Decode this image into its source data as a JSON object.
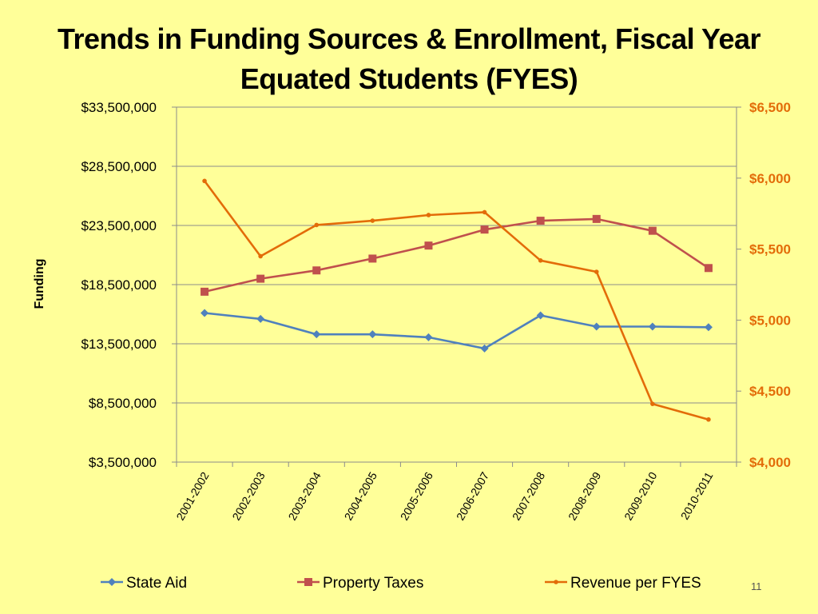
{
  "slide": {
    "title": "Trends in Funding Sources & Enrollment, Fiscal Year Equated Students (FYES)",
    "page_number": "11"
  },
  "colors": {
    "background": "#FFFF99",
    "state_aid": "#4F81BD",
    "property_taxes": "#C0504D",
    "revenue_per_fyes": "#E36C09"
  },
  "chart_data": {
    "type": "line",
    "categories": [
      "2001-2002",
      "2002-2003",
      "2003-2004",
      "2004-2005",
      "2005-2006",
      "2006-2007",
      "2007-2008",
      "2008-2009",
      "2009-2010",
      "2010-2011"
    ],
    "y_left": {
      "label": "Funding",
      "range": [
        3500000,
        33500000
      ],
      "ticks": [
        3500000,
        8500000,
        13500000,
        18500000,
        23500000,
        28500000,
        33500000
      ],
      "tick_labels": [
        "$3,500,000",
        "$8,500,000",
        "$13,500,000",
        "$18,500,000",
        "$23,500,000",
        "$28,500,000",
        "$33,500,000"
      ]
    },
    "y_right": {
      "label": "",
      "range": [
        4000,
        6500
      ],
      "ticks": [
        4000,
        4500,
        5000,
        5500,
        6000,
        6500
      ],
      "tick_labels": [
        "$4,000",
        "$4,500",
        "$5,000",
        "$5,500",
        "$6,000",
        "$6,500"
      ]
    },
    "grid": "horizontal",
    "legend_position": "bottom",
    "series": [
      {
        "name": "State Aid",
        "axis": "left",
        "marker": "diamond",
        "values": [
          16100000,
          15600000,
          14300000,
          14300000,
          14050000,
          13100000,
          15900000,
          14950000,
          14950000,
          14900000
        ]
      },
      {
        "name": "Property Taxes",
        "axis": "left",
        "marker": "square",
        "values": [
          17900000,
          19000000,
          19700000,
          20700000,
          21800000,
          23150000,
          23900000,
          24050000,
          23050000,
          19900000
        ]
      },
      {
        "name": "Revenue per FYES",
        "axis": "right",
        "marker": "dot",
        "values": [
          5980,
          5450,
          5670,
          5700,
          5740,
          5760,
          5420,
          5340,
          4410,
          4300
        ]
      }
    ]
  }
}
